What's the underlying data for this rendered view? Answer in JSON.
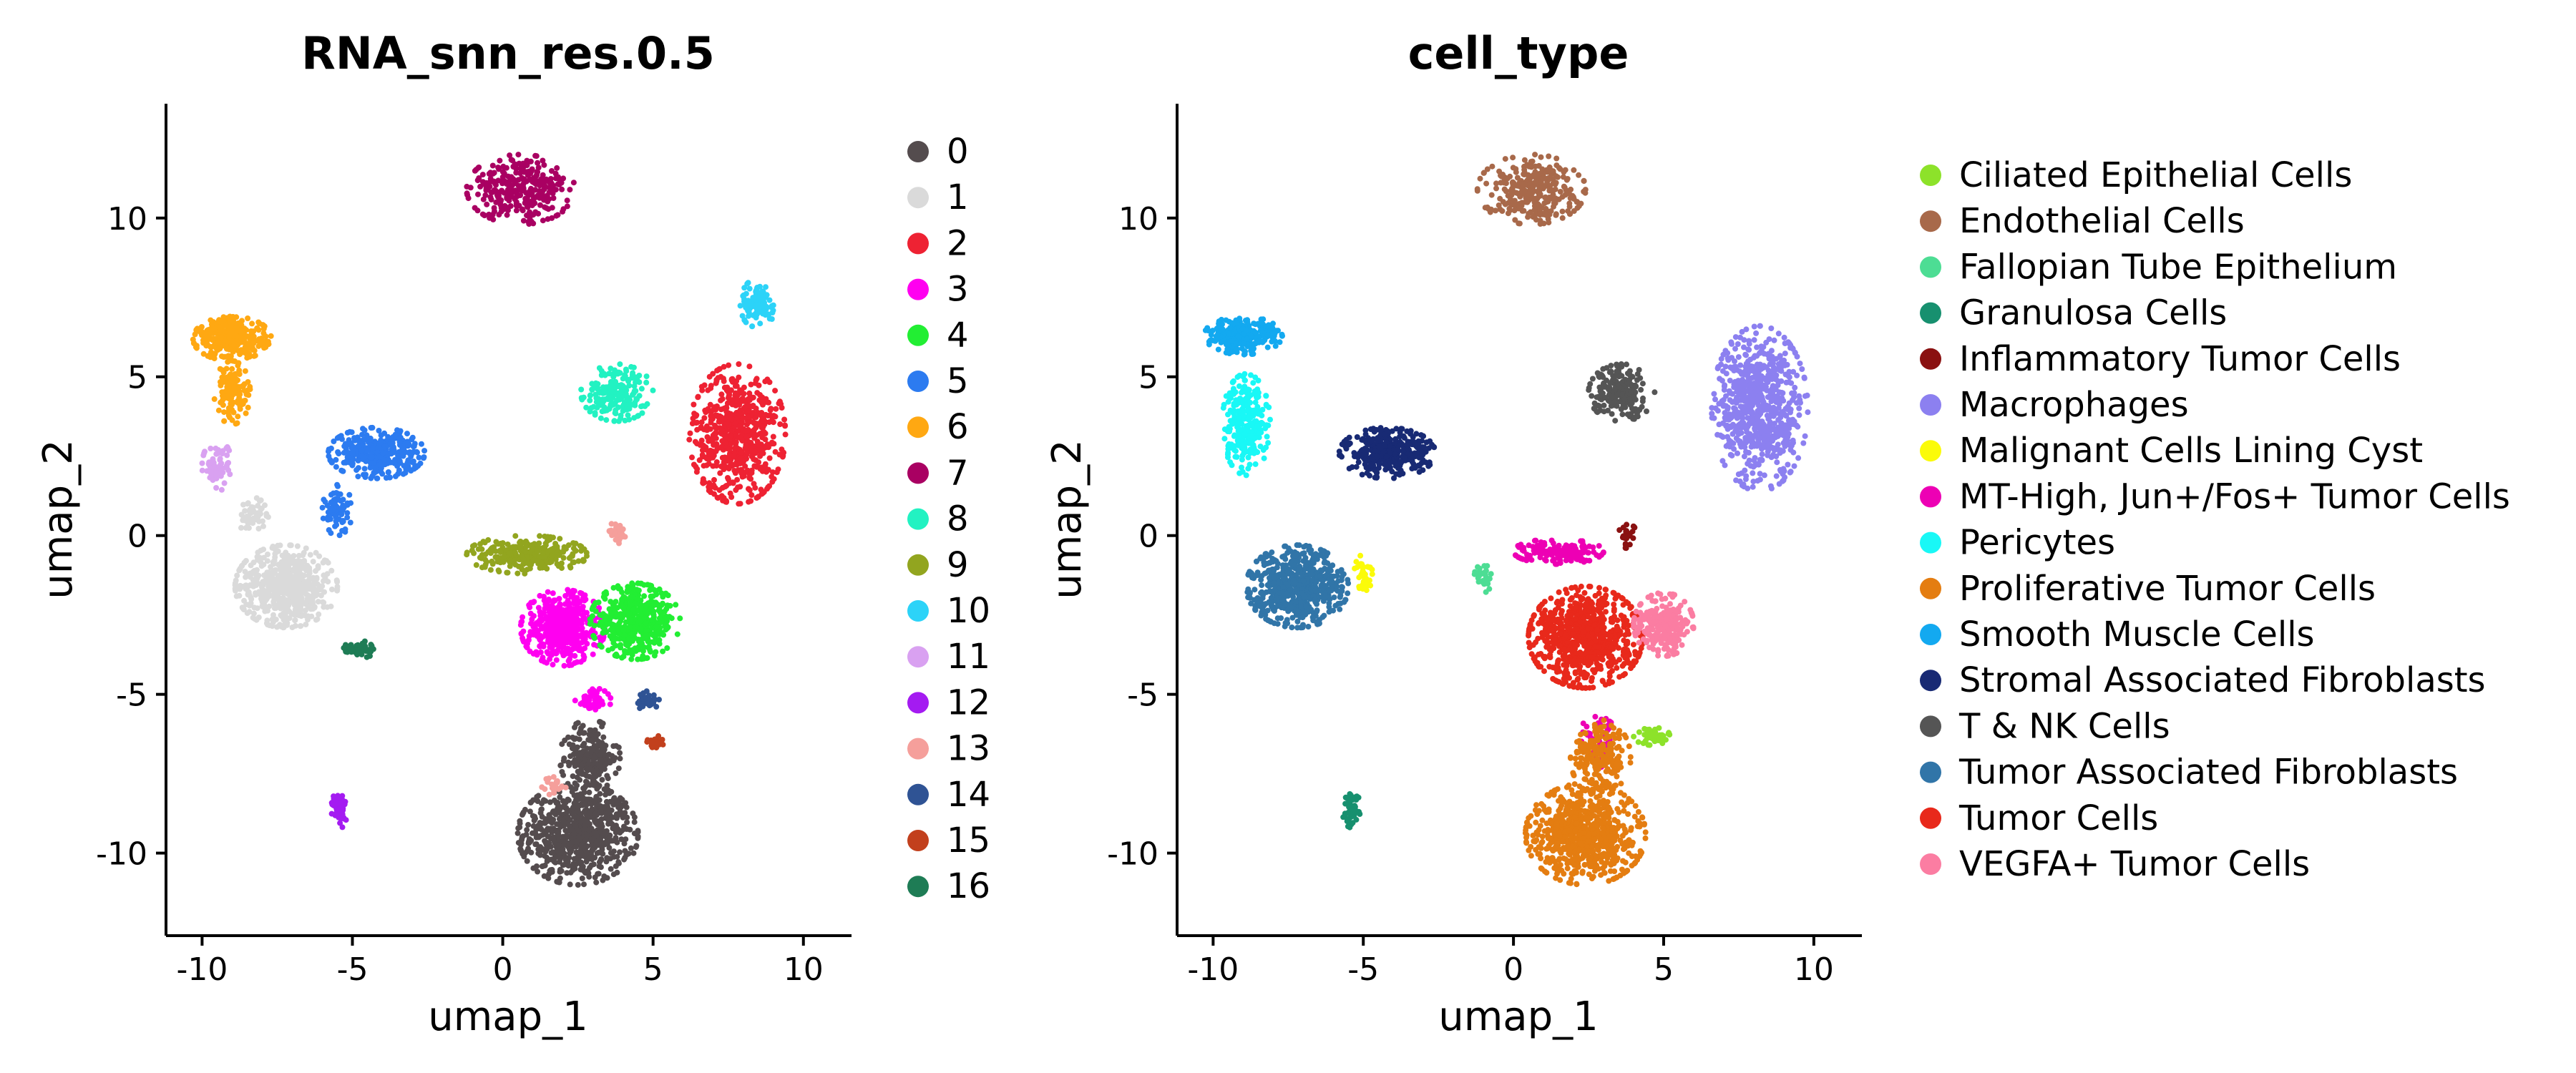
{
  "chart_data": [
    {
      "type": "scatter",
      "title": "RNA_snn_res.0.5",
      "xlabel": "umap_1",
      "ylabel": "umap_2",
      "xlim": [
        -11.2,
        11.6
      ],
      "ylim": [
        -12.6,
        13.6
      ],
      "xticks": [
        -10,
        -5,
        0,
        5,
        10
      ],
      "xtick_labels": [
        "-10",
        "-5",
        "0",
        "5",
        "10"
      ],
      "yticks": [
        10,
        5,
        0,
        -5,
        -10
      ],
      "ytick_labels": [
        "10",
        "5",
        "0",
        "-5",
        "-10"
      ],
      "grid": false,
      "legend": "right",
      "series": [
        {
          "name": "0",
          "color": "#544C4E",
          "clusters": [
            {
              "cx": 2.5,
              "cy": -9.4,
              "rx": 2.0,
              "ry": 1.6,
              "n": 700
            },
            {
              "cx": 2.9,
              "cy": -7.0,
              "rx": 1.0,
              "ry": 1.2,
              "n": 220
            }
          ]
        },
        {
          "name": "1",
          "color": "#DADADA",
          "clusters": [
            {
              "cx": -7.2,
              "cy": -1.6,
              "rx": 1.7,
              "ry": 1.3,
              "n": 600
            },
            {
              "cx": -8.3,
              "cy": 0.6,
              "rx": 0.5,
              "ry": 0.6,
              "n": 60
            }
          ]
        },
        {
          "name": "2",
          "color": "#EE2233",
          "clusters": [
            {
              "cx": 7.8,
              "cy": 3.2,
              "rx": 1.6,
              "ry": 2.2,
              "n": 600
            }
          ]
        },
        {
          "name": "3",
          "color": "#FF00F0",
          "clusters": [
            {
              "cx": 2.0,
              "cy": -2.9,
              "rx": 1.4,
              "ry": 1.2,
              "n": 500
            },
            {
              "cx": 3.0,
              "cy": -5.2,
              "rx": 0.6,
              "ry": 0.4,
              "n": 60
            }
          ]
        },
        {
          "name": "4",
          "color": "#22EE33",
          "clusters": [
            {
              "cx": 4.4,
              "cy": -2.7,
              "rx": 1.5,
              "ry": 1.2,
              "n": 450
            }
          ]
        },
        {
          "name": "5",
          "color": "#2C7BF0",
          "clusters": [
            {
              "cx": -4.2,
              "cy": 2.6,
              "rx": 1.6,
              "ry": 0.8,
              "n": 320
            },
            {
              "cx": -5.5,
              "cy": 0.8,
              "rx": 0.5,
              "ry": 0.8,
              "n": 70
            }
          ]
        },
        {
          "name": "6",
          "color": "#FFA812",
          "clusters": [
            {
              "cx": -9.0,
              "cy": 6.2,
              "rx": 1.3,
              "ry": 0.7,
              "n": 300
            },
            {
              "cx": -9.0,
              "cy": 4.5,
              "rx": 0.6,
              "ry": 1.0,
              "n": 120
            }
          ]
        },
        {
          "name": "7",
          "color": "#A90062",
          "clusters": [
            {
              "cx": 0.6,
              "cy": 10.9,
              "rx": 1.8,
              "ry": 1.1,
              "n": 300
            }
          ]
        },
        {
          "name": "8",
          "color": "#22F2C2",
          "clusters": [
            {
              "cx": 3.8,
              "cy": 4.5,
              "rx": 1.2,
              "ry": 0.9,
              "n": 200
            }
          ]
        },
        {
          "name": "9",
          "color": "#92A51F",
          "clusters": [
            {
              "cx": 0.8,
              "cy": -0.6,
              "rx": 2.0,
              "ry": 0.6,
              "n": 260
            }
          ]
        },
        {
          "name": "10",
          "color": "#2CD3F8",
          "clusters": [
            {
              "cx": 8.5,
              "cy": 7.3,
              "rx": 0.6,
              "ry": 0.8,
              "n": 100
            }
          ]
        },
        {
          "name": "11",
          "color": "#D9A1F1",
          "clusters": [
            {
              "cx": -9.5,
              "cy": 2.2,
              "rx": 0.5,
              "ry": 0.8,
              "n": 70
            }
          ]
        },
        {
          "name": "12",
          "color": "#A41BF1",
          "clusters": [
            {
              "cx": -5.4,
              "cy": -8.6,
              "rx": 0.3,
              "ry": 0.6,
              "n": 50
            }
          ]
        },
        {
          "name": "13",
          "color": "#F59F9B",
          "clusters": [
            {
              "cx": 3.8,
              "cy": 0.1,
              "rx": 0.3,
              "ry": 0.4,
              "n": 30
            },
            {
              "cx": 1.7,
              "cy": -7.9,
              "rx": 0.4,
              "ry": 0.3,
              "n": 25
            }
          ]
        },
        {
          "name": "14",
          "color": "#2F5394",
          "clusters": [
            {
              "cx": 4.8,
              "cy": -5.2,
              "rx": 0.4,
              "ry": 0.3,
              "n": 40
            }
          ]
        },
        {
          "name": "15",
          "color": "#C2401D",
          "clusters": [
            {
              "cx": 5.1,
              "cy": -6.5,
              "rx": 0.3,
              "ry": 0.2,
              "n": 30
            }
          ]
        },
        {
          "name": "16",
          "color": "#1E7C55",
          "clusters": [
            {
              "cx": -4.8,
              "cy": -3.6,
              "rx": 0.5,
              "ry": 0.3,
              "n": 40
            }
          ]
        }
      ]
    },
    {
      "type": "scatter",
      "title": "cell_type",
      "xlabel": "umap_1",
      "ylabel": "umap_2",
      "xlim": [
        -11.2,
        11.6
      ],
      "ylim": [
        -12.6,
        13.6
      ],
      "xticks": [
        -10,
        -5,
        0,
        5,
        10
      ],
      "xtick_labels": [
        "-10",
        "-5",
        "0",
        "5",
        "10"
      ],
      "yticks": [
        10,
        5,
        0,
        -5,
        -10
      ],
      "ytick_labels": [
        "10",
        "5",
        "0",
        "-5",
        "-10"
      ],
      "grid": false,
      "legend": "right",
      "series": [
        {
          "name": "Ciliated Epithelial Cells",
          "color": "#8DE22A",
          "clusters": [
            {
              "cx": 4.6,
              "cy": -6.3,
              "rx": 0.6,
              "ry": 0.3,
              "n": 50
            }
          ]
        },
        {
          "name": "Endothelial Cells",
          "color": "#A8694A",
          "clusters": [
            {
              "cx": 0.6,
              "cy": 10.9,
              "rx": 1.8,
              "ry": 1.1,
              "n": 300
            }
          ]
        },
        {
          "name": "Fallopian Tube Epithelium",
          "color": "#4DDD94",
          "clusters": [
            {
              "cx": -1.0,
              "cy": -1.3,
              "rx": 0.3,
              "ry": 0.5,
              "n": 30
            }
          ]
        },
        {
          "name": "Granulosa Cells",
          "color": "#17906F",
          "clusters": [
            {
              "cx": -5.4,
              "cy": -8.6,
              "rx": 0.3,
              "ry": 0.6,
              "n": 50
            }
          ]
        },
        {
          "name": "Inflammatory Tumor Cells",
          "color": "#8A1111",
          "clusters": [
            {
              "cx": 3.8,
              "cy": 0.0,
              "rx": 0.3,
              "ry": 0.4,
              "n": 30
            }
          ]
        },
        {
          "name": "Macrophages",
          "color": "#8C80F0",
          "clusters": [
            {
              "cx": 8.2,
              "cy": 4.0,
              "rx": 1.6,
              "ry": 2.6,
              "n": 700
            }
          ]
        },
        {
          "name": "Malignant Cells Lining Cyst",
          "color": "#FBFB09",
          "clusters": [
            {
              "cx": -5.0,
              "cy": -1.2,
              "rx": 0.3,
              "ry": 0.6,
              "n": 40
            }
          ]
        },
        {
          "name": "MT-High, Jun+/Fos+ Tumor Cells",
          "color": "#ED00B4",
          "clusters": [
            {
              "cx": 1.5,
              "cy": -0.5,
              "rx": 1.5,
              "ry": 0.4,
              "n": 150
            },
            {
              "cx": 2.8,
              "cy": -6.5,
              "rx": 0.7,
              "ry": 0.8,
              "n": 60
            }
          ]
        },
        {
          "name": "Pericytes",
          "color": "#19F8F6",
          "clusters": [
            {
              "cx": -8.9,
              "cy": 3.5,
              "rx": 0.8,
              "ry": 1.6,
              "n": 260
            }
          ]
        },
        {
          "name": "Proliferative Tumor Cells",
          "color": "#E47D11",
          "clusters": [
            {
              "cx": 2.4,
              "cy": -9.4,
              "rx": 2.0,
              "ry": 1.6,
              "n": 700
            },
            {
              "cx": 2.9,
              "cy": -7.0,
              "rx": 1.0,
              "ry": 1.2,
              "n": 200
            }
          ]
        },
        {
          "name": "Smooth Muscle Cells",
          "color": "#13A9F0",
          "clusters": [
            {
              "cx": -9.0,
              "cy": 6.3,
              "rx": 1.3,
              "ry": 0.6,
              "n": 260
            }
          ]
        },
        {
          "name": "Stromal Associated Fibroblasts",
          "color": "#182A74",
          "clusters": [
            {
              "cx": -4.2,
              "cy": 2.6,
              "rx": 1.6,
              "ry": 0.8,
              "n": 320
            }
          ]
        },
        {
          "name": "T & NK Cells",
          "color": "#555555",
          "clusters": [
            {
              "cx": 3.6,
              "cy": 4.5,
              "rx": 1.1,
              "ry": 0.9,
              "n": 200
            }
          ]
        },
        {
          "name": "Tumor Associated Fibroblasts",
          "color": "#3175A8",
          "clusters": [
            {
              "cx": -7.2,
              "cy": -1.6,
              "rx": 1.7,
              "ry": 1.3,
              "n": 600
            }
          ]
        },
        {
          "name": "Tumor Cells",
          "color": "#E8291B",
          "clusters": [
            {
              "cx": 2.4,
              "cy": -3.2,
              "rx": 1.9,
              "ry": 1.6,
              "n": 800
            }
          ]
        },
        {
          "name": "VEGFA+ Tumor Cells",
          "color": "#FB7DA2",
          "clusters": [
            {
              "cx": 5.0,
              "cy": -2.8,
              "rx": 1.0,
              "ry": 1.0,
              "n": 260
            }
          ]
        }
      ]
    }
  ]
}
